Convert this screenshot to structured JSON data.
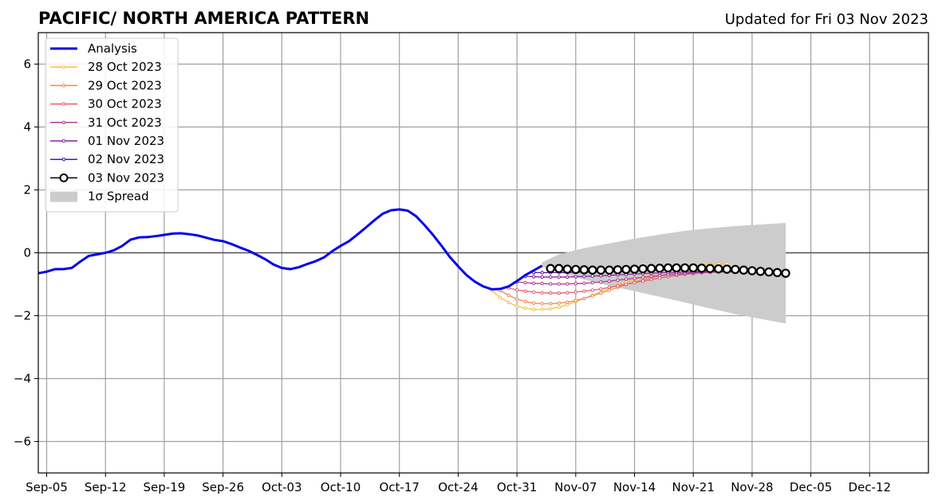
{
  "chart_data": {
    "type": "line",
    "title": "PACIFIC/ NORTH AMERICA PATTERN",
    "subtitle": "Updated for Fri 03 Nov 2023",
    "xlabel": "",
    "ylabel": "",
    "xlim": [
      "2023-09-04",
      "2023-12-19"
    ],
    "ylim": [
      -7,
      7
    ],
    "grid": true,
    "legend_position": "upper-left",
    "x_ticks": [
      "2023-09-05",
      "2023-09-12",
      "2023-09-19",
      "2023-09-26",
      "2023-10-03",
      "2023-10-10",
      "2023-10-17",
      "2023-10-24",
      "2023-10-31",
      "2023-11-07",
      "2023-11-14",
      "2023-11-21",
      "2023-11-28",
      "2023-12-05",
      "2023-12-12"
    ],
    "x_tick_labels": [
      "Sep-05",
      "Sep-12",
      "Sep-19",
      "Sep-26",
      "Oct-03",
      "Oct-10",
      "Oct-17",
      "Oct-24",
      "Oct-31",
      "Nov-07",
      "Nov-14",
      "Nov-21",
      "Nov-28",
      "Dec-05",
      "Dec-12"
    ],
    "y_ticks": [
      6,
      4,
      2,
      0,
      -2,
      -4,
      -6
    ],
    "y_tick_labels": [
      "6",
      "4",
      "2",
      "0",
      "−2",
      "−4",
      "−6"
    ],
    "analysis": {
      "name": "Analysis",
      "color": "#0000ee",
      "x": [
        "2023-09-04",
        "2023-09-05",
        "2023-09-06",
        "2023-09-07",
        "2023-09-08",
        "2023-09-09",
        "2023-09-10",
        "2023-09-11",
        "2023-09-12",
        "2023-09-13",
        "2023-09-14",
        "2023-09-15",
        "2023-09-16",
        "2023-09-17",
        "2023-09-18",
        "2023-09-19",
        "2023-09-20",
        "2023-09-21",
        "2023-09-22",
        "2023-09-23",
        "2023-09-24",
        "2023-09-25",
        "2023-09-26",
        "2023-09-27",
        "2023-09-28",
        "2023-09-29",
        "2023-09-30",
        "2023-10-01",
        "2023-10-02",
        "2023-10-03",
        "2023-10-04",
        "2023-10-05",
        "2023-10-06",
        "2023-10-07",
        "2023-10-08",
        "2023-10-09",
        "2023-10-10",
        "2023-10-11",
        "2023-10-12",
        "2023-10-13",
        "2023-10-14",
        "2023-10-15",
        "2023-10-16",
        "2023-10-17",
        "2023-10-18",
        "2023-10-19",
        "2023-10-20",
        "2023-10-21",
        "2023-10-22",
        "2023-10-23",
        "2023-10-24",
        "2023-10-25",
        "2023-10-26",
        "2023-10-27",
        "2023-10-28",
        "2023-10-29",
        "2023-10-30",
        "2023-10-31",
        "2023-11-01",
        "2023-11-02",
        "2023-11-03"
      ],
      "y": [
        -0.65,
        -0.6,
        -0.52,
        -0.52,
        -0.48,
        -0.28,
        -0.1,
        -0.05,
        0.0,
        0.08,
        0.22,
        0.42,
        0.49,
        0.5,
        0.53,
        0.57,
        0.61,
        0.62,
        0.59,
        0.55,
        0.48,
        0.41,
        0.37,
        0.28,
        0.17,
        0.07,
        -0.06,
        -0.2,
        -0.37,
        -0.48,
        -0.52,
        -0.46,
        -0.36,
        -0.27,
        -0.15,
        0.05,
        0.22,
        0.37,
        0.58,
        0.8,
        1.03,
        1.24,
        1.35,
        1.38,
        1.34,
        1.16,
        0.88,
        0.57,
        0.23,
        -0.13,
        -0.43,
        -0.71,
        -0.92,
        -1.07,
        -1.16,
        -1.15,
        -1.07,
        -0.9,
        -0.71,
        -0.56,
        -0.41
      ]
    },
    "series": [
      {
        "name": "28 Oct 2023",
        "color": "#f8c040",
        "start": "2023-10-28",
        "values": [
          -1.2,
          -1.42,
          -1.58,
          -1.7,
          -1.76,
          -1.8,
          -1.8,
          -1.78,
          -1.73,
          -1.65,
          -1.55,
          -1.45,
          -1.35,
          -1.24,
          -1.13,
          -1.03,
          -0.93,
          -0.84,
          -0.76,
          -0.68,
          -0.62,
          -0.56,
          -0.5,
          -0.45,
          -0.41,
          -0.38,
          -0.37,
          -0.36,
          -0.35
        ]
      },
      {
        "name": "29 Oct 2023",
        "color": "#f08850",
        "start": "2023-10-29",
        "values": [
          -1.2,
          -1.35,
          -1.47,
          -1.55,
          -1.6,
          -1.62,
          -1.62,
          -1.6,
          -1.57,
          -1.52,
          -1.45,
          -1.37,
          -1.28,
          -1.19,
          -1.1,
          -1.01,
          -0.93,
          -0.86,
          -0.79,
          -0.73,
          -0.68,
          -0.64,
          -0.61,
          -0.59,
          -0.58,
          -0.57,
          -0.57,
          -0.57,
          -0.57
        ]
      },
      {
        "name": "30 Oct 2023",
        "color": "#e06070",
        "start": "2023-10-30",
        "values": [
          -1.12,
          -1.18,
          -1.22,
          -1.25,
          -1.27,
          -1.28,
          -1.28,
          -1.27,
          -1.25,
          -1.22,
          -1.19,
          -1.15,
          -1.1,
          -1.05,
          -1.0,
          -0.95,
          -0.9,
          -0.85,
          -0.8,
          -0.76,
          -0.72,
          -0.69,
          -0.66,
          -0.64,
          -0.62,
          -0.61,
          -0.6,
          -0.6,
          -0.6
        ]
      },
      {
        "name": "31 Oct 2023",
        "color": "#b04090",
        "start": "2023-10-31",
        "values": [
          -0.93,
          -0.95,
          -0.97,
          -0.98,
          -0.99,
          -0.99,
          -0.99,
          -0.98,
          -0.97,
          -0.95,
          -0.93,
          -0.9,
          -0.87,
          -0.84,
          -0.81,
          -0.78,
          -0.75,
          -0.72,
          -0.7,
          -0.68,
          -0.66,
          -0.64,
          -0.63,
          -0.62,
          -0.61,
          -0.61,
          -0.61,
          -0.61,
          -0.61
        ]
      },
      {
        "name": "01 Nov 2023",
        "color": "#8a1fa0",
        "start": "2023-11-01",
        "values": [
          -0.75,
          -0.76,
          -0.77,
          -0.77,
          -0.77,
          -0.77,
          -0.76,
          -0.75,
          -0.74,
          -0.73,
          -0.72,
          -0.7,
          -0.69,
          -0.67,
          -0.66,
          -0.65,
          -0.64,
          -0.63,
          -0.62,
          -0.61,
          -0.61,
          -0.6,
          -0.6,
          -0.6,
          -0.6,
          -0.6,
          -0.6,
          -0.6,
          -0.6
        ]
      },
      {
        "name": "02 Nov 2023",
        "color": "#5a10a8",
        "start": "2023-11-02",
        "values": [
          -0.63,
          -0.63,
          -0.63,
          -0.63,
          -0.63,
          -0.62,
          -0.62,
          -0.61,
          -0.6,
          -0.59,
          -0.59,
          -0.58,
          -0.57,
          -0.56,
          -0.55,
          -0.55,
          -0.54,
          -0.54,
          -0.54,
          -0.54,
          -0.54,
          -0.54,
          -0.55,
          -0.55,
          -0.56,
          -0.56,
          -0.57,
          -0.57,
          -0.58
        ]
      },
      {
        "name": "03 Nov 2023",
        "color": "#000000",
        "start": "2023-11-04",
        "values": [
          -0.5,
          -0.5,
          -0.52,
          -0.53,
          -0.54,
          -0.55,
          -0.55,
          -0.55,
          -0.54,
          -0.53,
          -0.52,
          -0.51,
          -0.5,
          -0.49,
          -0.48,
          -0.48,
          -0.48,
          -0.48,
          -0.49,
          -0.5,
          -0.51,
          -0.52,
          -0.53,
          -0.55,
          -0.57,
          -0.59,
          -0.61,
          -0.63,
          -0.65
        ]
      }
    ],
    "spread": {
      "name": "1σ Spread",
      "color": "#cccccc",
      "x": [
        "2023-11-03",
        "2023-11-05",
        "2023-11-08",
        "2023-11-11",
        "2023-11-14",
        "2023-11-17",
        "2023-11-20",
        "2023-11-23",
        "2023-11-26",
        "2023-11-29",
        "2023-12-02"
      ],
      "upper": [
        -0.3,
        -0.05,
        0.15,
        0.3,
        0.45,
        0.58,
        0.7,
        0.78,
        0.85,
        0.9,
        0.95
      ],
      "lower": [
        -0.45,
        -0.62,
        -0.85,
        -1.05,
        -1.22,
        -1.4,
        -1.58,
        -1.77,
        -1.95,
        -2.1,
        -2.25
      ]
    },
    "legend": [
      "Analysis",
      "28 Oct 2023",
      "29 Oct 2023",
      "30 Oct 2023",
      "31 Oct 2023",
      "01 Nov 2023",
      "02 Nov 2023",
      "03 Nov 2023",
      "1σ Spread"
    ]
  }
}
